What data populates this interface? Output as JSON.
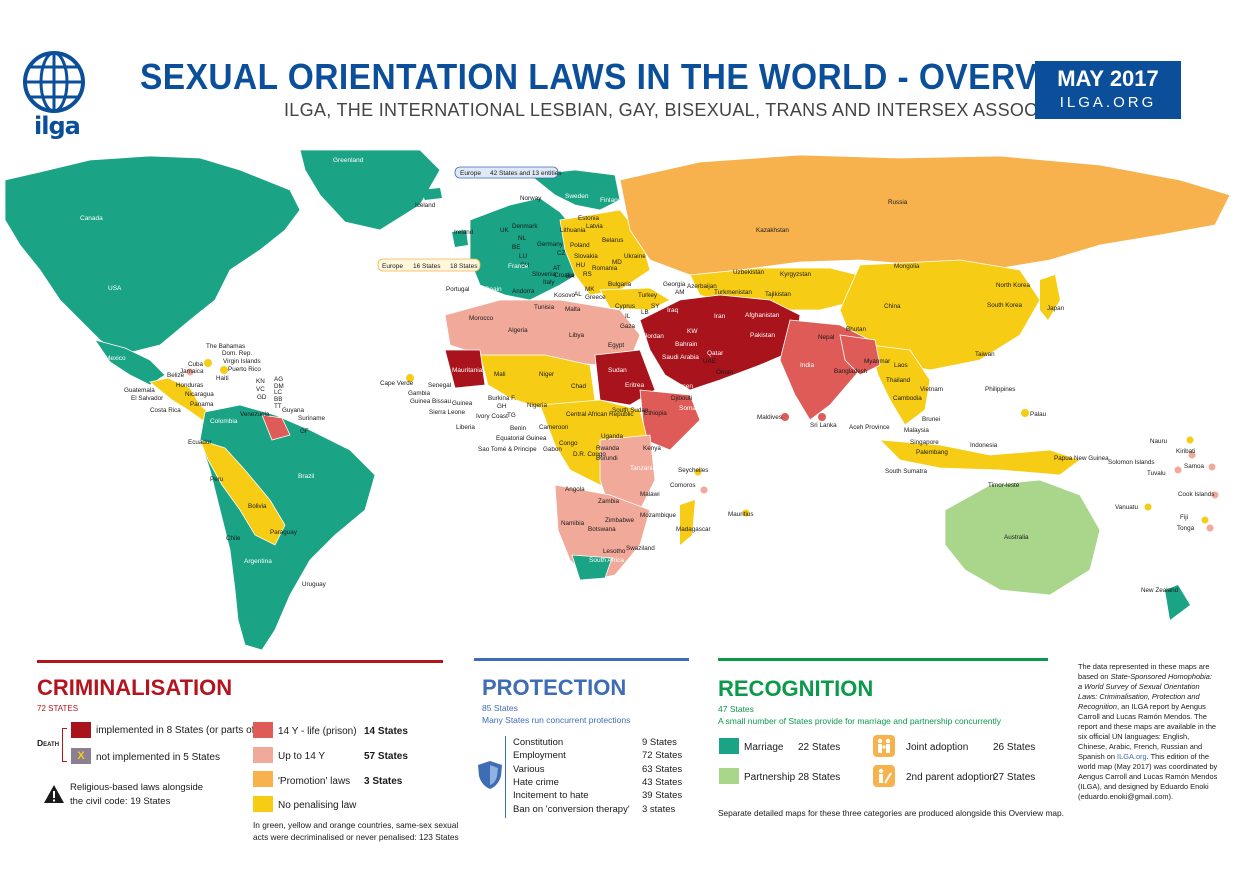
{
  "header": {
    "logo_text": "ilga",
    "title": "SEXUAL ORIENTATION LAWS IN THE WORLD - OVERVIEW",
    "subtitle": "ILGA, THE INTERNATIONAL LESBIAN, GAY, BISEXUAL, TRANS AND INTERSEX ASSOCIATION",
    "date": "MAY 2017",
    "site": "ILGA.ORG"
  },
  "colors": {
    "marriage": "#1aa384",
    "partnership": "#a9d68b",
    "no_penalising": "#f6cc14",
    "promotion": "#f7b14d",
    "up_to_14": "#f1a99a",
    "life_prison": "#de5b57",
    "death": "#a8131c",
    "death_not_impl": "#8a7f93",
    "protection_blue": "#3f6db5",
    "ilga_blue": "#0b4f9a"
  },
  "map": {
    "region_callouts": {
      "europe_protection": "Europe",
      "europe_protection_count": "42 States and 13 entities",
      "europe_recognition": "Europe",
      "europe_states": "16 States",
      "europe_states_2": "18 States"
    },
    "labels": [
      "Greenland",
      "Canada",
      "USA",
      "Mexico",
      "Cuba",
      "The Bahamas",
      "Dom. Rep.",
      "Virgin Islands",
      "Puerto Rico",
      "Jamaica",
      "Haiti",
      "Belize",
      "Honduras",
      "Guatemala",
      "El Salvador",
      "Nicaragua",
      "Costa Rica",
      "Panama",
      "KN",
      "VC",
      "AG",
      "DM",
      "LC",
      "GD",
      "BB",
      "TT",
      "Venezuela",
      "Guyana",
      "Suriname",
      "GF",
      "Colombia",
      "Ecuador",
      "Peru",
      "Brazil",
      "Bolivia",
      "Paraguay",
      "Chile",
      "Argentina",
      "Uruguay",
      "Iceland",
      "Norway",
      "Sweden",
      "Finland",
      "Estonia",
      "Latvia",
      "Lithuania",
      "Belarus",
      "Denmark",
      "Ireland",
      "UK",
      "NL",
      "BE",
      "LU",
      "Germany",
      "Poland",
      "CZ",
      "Slovakia",
      "CH",
      "Slovenia",
      "Italy",
      "AT",
      "HU",
      "France",
      "Spain",
      "Portugal",
      "Andorra",
      "Croatia",
      "BA",
      "RS",
      "Kosovo",
      "MK",
      "AL",
      "Greece",
      "Malta",
      "Romania",
      "MD",
      "Ukraine",
      "Bulgaria",
      "Turkey",
      "Cyprus",
      "Georgia",
      "AM",
      "Azerbaijan",
      "Russia",
      "Kazakhstan",
      "Uzbekistan",
      "Turkmenistan",
      "Kyrgyzstan",
      "Tajikistan",
      "Mongolia",
      "China",
      "North Korea",
      "South Korea",
      "Japan",
      "Taiwan",
      "Philippines",
      "Palau",
      "Morocco",
      "Algeria",
      "Tunisia",
      "Libya",
      "Egypt",
      "Gaza",
      "IL",
      "LB",
      "SY",
      "Jordan",
      "Iraq",
      "Iran",
      "KW",
      "Bahrain",
      "Qatar",
      "UAE",
      "Oman",
      "Saudi Arabia",
      "Yemen",
      "Afghanistan",
      "Pakistan",
      "India",
      "Nepal",
      "Bhutan",
      "Bangladesh",
      "Myanmar",
      "Laos",
      "Thailand",
      "Cambodia",
      "Vietnam",
      "Sri Lanka",
      "Maldives",
      "Malaysia",
      "Brunei",
      "Singapore",
      "Aceh Province",
      "Palembang",
      "South Sumatra",
      "Indonesia",
      "Timor-leste",
      "Papua New Guinea",
      "Solomon Islands",
      "Nauru",
      "Kiribati",
      "Tuvalu",
      "Samoa",
      "Vanuatu",
      "Fiji",
      "Tonga",
      "Cook Islands",
      "Australia",
      "New Zealand",
      "Cape Verde",
      "Mauritania",
      "Mali",
      "Niger",
      "Chad",
      "Sudan",
      "Eritrea",
      "Djibouti",
      "Somalia",
      "Senegal",
      "Gambia",
      "Guinea Bissau",
      "Guinea",
      "Sierra Leone",
      "Liberia",
      "Ivory Coast",
      "Burkina F.",
      "GH",
      "TG",
      "Benin",
      "Nigeria",
      "Cameroon",
      "Equatorial Guinea",
      "Sao Tomé & Principe",
      "Gabon",
      "Congo",
      "D.R. Congo",
      "Central African Republic",
      "South Sudan",
      "Ethiopia",
      "Uganda",
      "Kenya",
      "Rwanda",
      "Burundi",
      "Tanzania",
      "Seychelles",
      "Comoros",
      "Angola",
      "Zambia",
      "Malawi",
      "Mozambique",
      "Namibia",
      "Botswana",
      "Zimbabwe",
      "Madagascar",
      "Mauritius",
      "South Africa",
      "Lesotho",
      "Swaziland"
    ]
  },
  "criminalisation": {
    "heading": "CRIMINALISATION",
    "count": "72 STATES",
    "death_label": "Death",
    "items": [
      {
        "label": "implemented in 8 States (or parts of)"
      },
      {
        "label": "not implemented in 5 States",
        "mark": "X"
      },
      {
        "label": "14 Y - life (prison)",
        "value": "14 States"
      },
      {
        "label": "Up to 14 Y",
        "value": "57 States"
      },
      {
        "label": "'Promotion' laws",
        "value": "3 States"
      },
      {
        "label": "No penalising law"
      }
    ],
    "religious_line1": "Religious-based laws alongside",
    "religious_line2": "the civil code: 19 States",
    "note_line1": "In green, yellow and orange countries, same-sex sexual",
    "note_line2": "acts were decriminalised or never penalised: 123 States"
  },
  "protection": {
    "heading": "PROTECTION",
    "count": "85 States",
    "sub": "Many States run concurrent protections",
    "items": [
      {
        "label": "Constitution",
        "value": "9 States"
      },
      {
        "label": "Employment",
        "value": "72 States"
      },
      {
        "label": "Various",
        "value": "63 States"
      },
      {
        "label": "Hate crime",
        "value": "43 States"
      },
      {
        "label": "Incitement to hate",
        "value": "39 States"
      },
      {
        "label": "Ban on 'conversion therapy'",
        "value": "3 states"
      }
    ]
  },
  "recognition": {
    "heading": "RECOGNITION",
    "count": "47 States",
    "sub": "A small number of States provide for marriage and partnership concurrently",
    "items": [
      {
        "label": "Marriage",
        "value": "22 States"
      },
      {
        "label": "Partnership",
        "value": "28 States"
      },
      {
        "label": "Joint adoption",
        "value": "26 States"
      },
      {
        "label": "2nd parent adoption",
        "value": "27 States"
      }
    ],
    "footer": "Separate detailed maps for these three categories are produced alongside this Overview map."
  },
  "footnote": {
    "p1": "The data represented in these maps are based on",
    "p1_italic": "State-Sponsored Homophobia: a World Survey of Sexual Orientation Laws: Criminalisation, Protection and Recognition",
    "p2": ", an ILGA report by Aengus Carroll and Lucas Ramón Mendos. The report and these maps are available in the six official UN languages: English, Chinese, Arabic, French, Russian and Spanish on",
    "link": "ILGA.org",
    "p3": ". This edition of the world map (May 2017) was coordinated by Aengus Carroll and Lucas Ramón Mendos (ILGA), and designed by Eduardo Enoki (eduardo.enoki@gmail.com)."
  }
}
